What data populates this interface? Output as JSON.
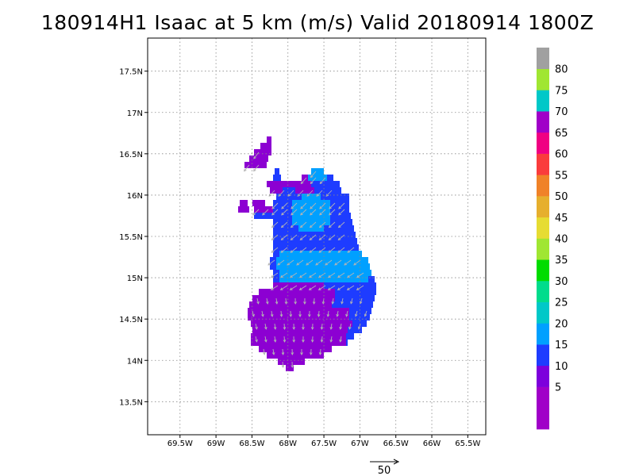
{
  "title": "180914H1 Isaac at 5 km (m/s) Valid 20180914 1800Z",
  "axes": {
    "lat_ticks": [
      {
        "value": 17.5,
        "label": "17.5N"
      },
      {
        "value": 17.0,
        "label": "17N"
      },
      {
        "value": 16.5,
        "label": "16.5N"
      },
      {
        "value": 16.0,
        "label": "16N"
      },
      {
        "value": 15.5,
        "label": "15.5N"
      },
      {
        "value": 15.0,
        "label": "15N"
      },
      {
        "value": 14.5,
        "label": "14.5N"
      },
      {
        "value": 14.0,
        "label": "14N"
      },
      {
        "value": 13.5,
        "label": "13.5N"
      }
    ],
    "lon_ticks": [
      {
        "value": -69.5,
        "label": "69.5W"
      },
      {
        "value": -69.0,
        "label": "69W"
      },
      {
        "value": -68.5,
        "label": "68.5W"
      },
      {
        "value": -68.0,
        "label": "68W"
      },
      {
        "value": -67.5,
        "label": "67.5W"
      },
      {
        "value": -67.0,
        "label": "67W"
      },
      {
        "value": -66.5,
        "label": "66.5W"
      },
      {
        "value": -66.0,
        "label": "66W"
      },
      {
        "value": -65.5,
        "label": "65.5W"
      }
    ],
    "lat_range": [
      13.1,
      17.9
    ],
    "lon_range": [
      -69.95,
      -65.25
    ],
    "grid": true
  },
  "colorbar": {
    "levels": [
      {
        "label": "",
        "color": "#a000c8"
      },
      {
        "label": "5",
        "color": "#a000c8"
      },
      {
        "label": "10",
        "color": "#7d00dc"
      },
      {
        "label": "15",
        "color": "#1e3cff"
      },
      {
        "label": "20",
        "color": "#00a0ff"
      },
      {
        "label": "25",
        "color": "#00c8c8"
      },
      {
        "label": "30",
        "color": "#00dc8c"
      },
      {
        "label": "35",
        "color": "#00dc00"
      },
      {
        "label": "40",
        "color": "#a0e632"
      },
      {
        "label": "45",
        "color": "#e6dc32"
      },
      {
        "label": "50",
        "color": "#e6af2d"
      },
      {
        "label": "55",
        "color": "#f08228"
      },
      {
        "label": "60",
        "color": "#fa3c3c"
      },
      {
        "label": "65",
        "color": "#f00082"
      },
      {
        "label": "70",
        "color": "#a000c8"
      },
      {
        "label": "75",
        "color": "#00c8c8"
      },
      {
        "label": "80",
        "color": "#a0e632"
      },
      {
        "label": "",
        "color": "#a0a0a0"
      }
    ]
  },
  "reference_vector": {
    "label": "50"
  },
  "colors": {
    "purple": "#8c00d2",
    "violet": "#7800dc",
    "blue": "#1e3cff",
    "lightblue": "#00a0ff",
    "arrow": "#b4b4b4"
  }
}
